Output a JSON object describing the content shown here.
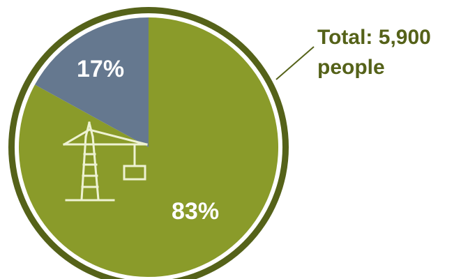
{
  "chart_data": {
    "type": "pie",
    "slices": [
      {
        "label": "83%",
        "value": 83,
        "color": "#8a9b2a"
      },
      {
        "label": "17%",
        "value": 17,
        "color": "#65788f"
      }
    ],
    "annotation": {
      "line1": "Total: 5,900",
      "line2": "people"
    },
    "icon": "construction-crane-icon",
    "colors": {
      "outer_ring": "#556219",
      "inner_ring": "#ffffff",
      "icon_stroke": "#eef2d2",
      "annotation_text": "#556219"
    }
  }
}
